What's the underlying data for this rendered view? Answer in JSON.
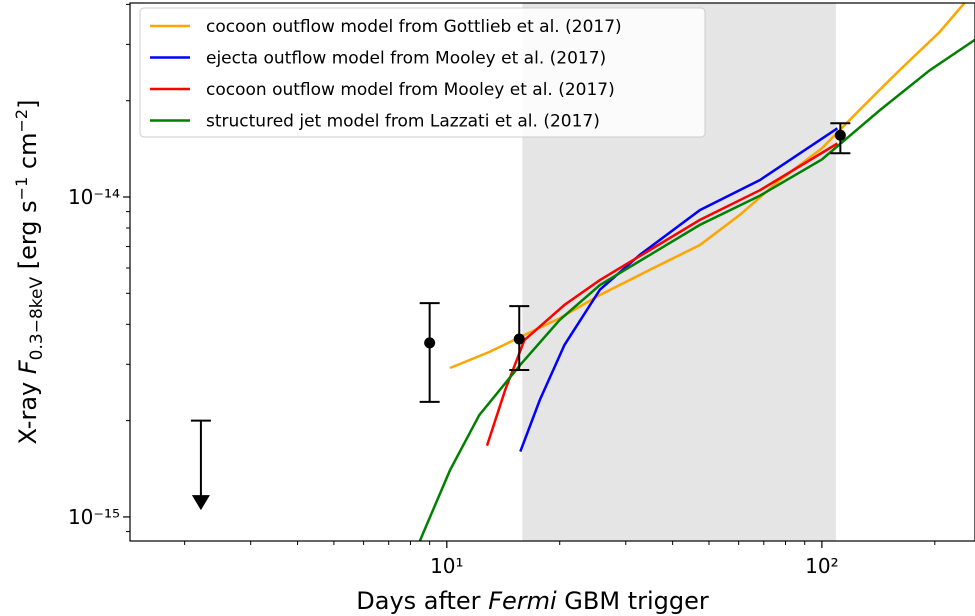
{
  "chart_data": {
    "type": "line",
    "xlabel": [
      "Days after ",
      "Fermi",
      " GBM trigger"
    ],
    "ylabel": [
      "X-ray ",
      "F",
      "0.3−8keV",
      " [erg s",
      "−1",
      " cm",
      "−2",
      "]"
    ],
    "xscale": "log",
    "yscale": "log",
    "xlim": [
      1.43,
      256
    ],
    "ylim": [
      8.41e-16,
      4.04e-14
    ],
    "xticks": [
      {
        "value": 10,
        "label": "10¹"
      },
      {
        "value": 100,
        "label": "10²"
      }
    ],
    "xticks_minor": [
      2,
      3,
      4,
      5,
      6,
      7,
      8,
      9,
      20,
      30,
      40,
      50,
      60,
      70,
      80,
      90,
      200
    ],
    "yticks": [
      {
        "value": 1e-15,
        "label": "10⁻¹⁵"
      },
      {
        "value": 1e-14,
        "label": "10⁻¹⁴"
      }
    ],
    "yticks_minor": [
      9e-16,
      2e-15,
      3e-15,
      4e-15,
      5e-15,
      6e-15,
      7e-15,
      8e-15,
      9e-15,
      2e-14,
      3e-14,
      4e-14
    ],
    "shaded_span": {
      "x": [
        15.9,
        109
      ],
      "color": "#e5e5e5"
    },
    "legend": "upper left",
    "series": [
      {
        "name": "cocoon outflow model from Gottlieb et al. (2017)",
        "color": "#ffa500",
        "x": [
          10.2,
          13.0,
          15.7,
          20.0,
          25.6,
          34.8,
          47.3,
          60.4,
          77.3,
          100,
          126,
          161,
          206,
          240
        ],
        "values": [
          2.92e-15,
          3.28e-15,
          3.65e-15,
          4.18e-15,
          4.94e-15,
          5.92e-15,
          7.08e-15,
          8.79e-15,
          1.13e-14,
          1.42e-14,
          1.87e-14,
          2.49e-14,
          3.28e-14,
          4.04e-14
        ]
      },
      {
        "name": "ejecta outflow model from Mooley et al. (2017)",
        "color": "#0000ff",
        "x": [
          15.7,
          17.7,
          20.6,
          25.6,
          32.7,
          47.3,
          68.4,
          110
        ],
        "values": [
          1.6e-15,
          2.32e-15,
          3.45e-15,
          5.13e-15,
          6.59e-15,
          9.1e-15,
          1.13e-14,
          1.64e-14
        ]
      },
      {
        "name": "cocoon outflow model from Mooley et al. (2017)",
        "color": "#ff0000",
        "x": [
          12.8,
          14.3,
          16.1,
          20.6,
          25.6,
          34.8,
          47.3,
          68.4,
          110
        ],
        "values": [
          1.67e-15,
          2.49e-15,
          3.57e-15,
          4.6e-15,
          5.5e-15,
          6.83e-15,
          8.48e-15,
          1.05e-14,
          1.47e-14
        ]
      },
      {
        "name": "structured jet model from Lazzati et al. (2017)",
        "color": "#008000",
        "x": [
          8.47,
          10.2,
          12.2,
          15.7,
          20.0,
          25.6,
          34.8,
          47.3,
          68.4,
          100,
          143,
          194,
          256
        ],
        "values": [
          8.41e-16,
          1.4e-15,
          2.08e-15,
          2.99e-15,
          4.13e-15,
          5.31e-15,
          6.59e-15,
          8.18e-15,
          1.01e-14,
          1.31e-14,
          1.87e-14,
          2.49e-14,
          3.1e-14
        ]
      }
    ],
    "points": {
      "color": "#000000",
      "x": [
        9.0,
        15.6,
        112
      ],
      "values": [
        3.5e-15,
        3.6e-15,
        1.56e-14
      ],
      "lower": [
        2.29e-15,
        2.88e-15,
        1.37e-14
      ],
      "upper": [
        4.66e-15,
        4.56e-15,
        1.7e-14
      ]
    },
    "upper_limits": {
      "color": "#000000",
      "x": [
        2.21
      ],
      "values": [
        2e-15
      ],
      "arrow_to": [
        1.05e-15
      ]
    }
  }
}
